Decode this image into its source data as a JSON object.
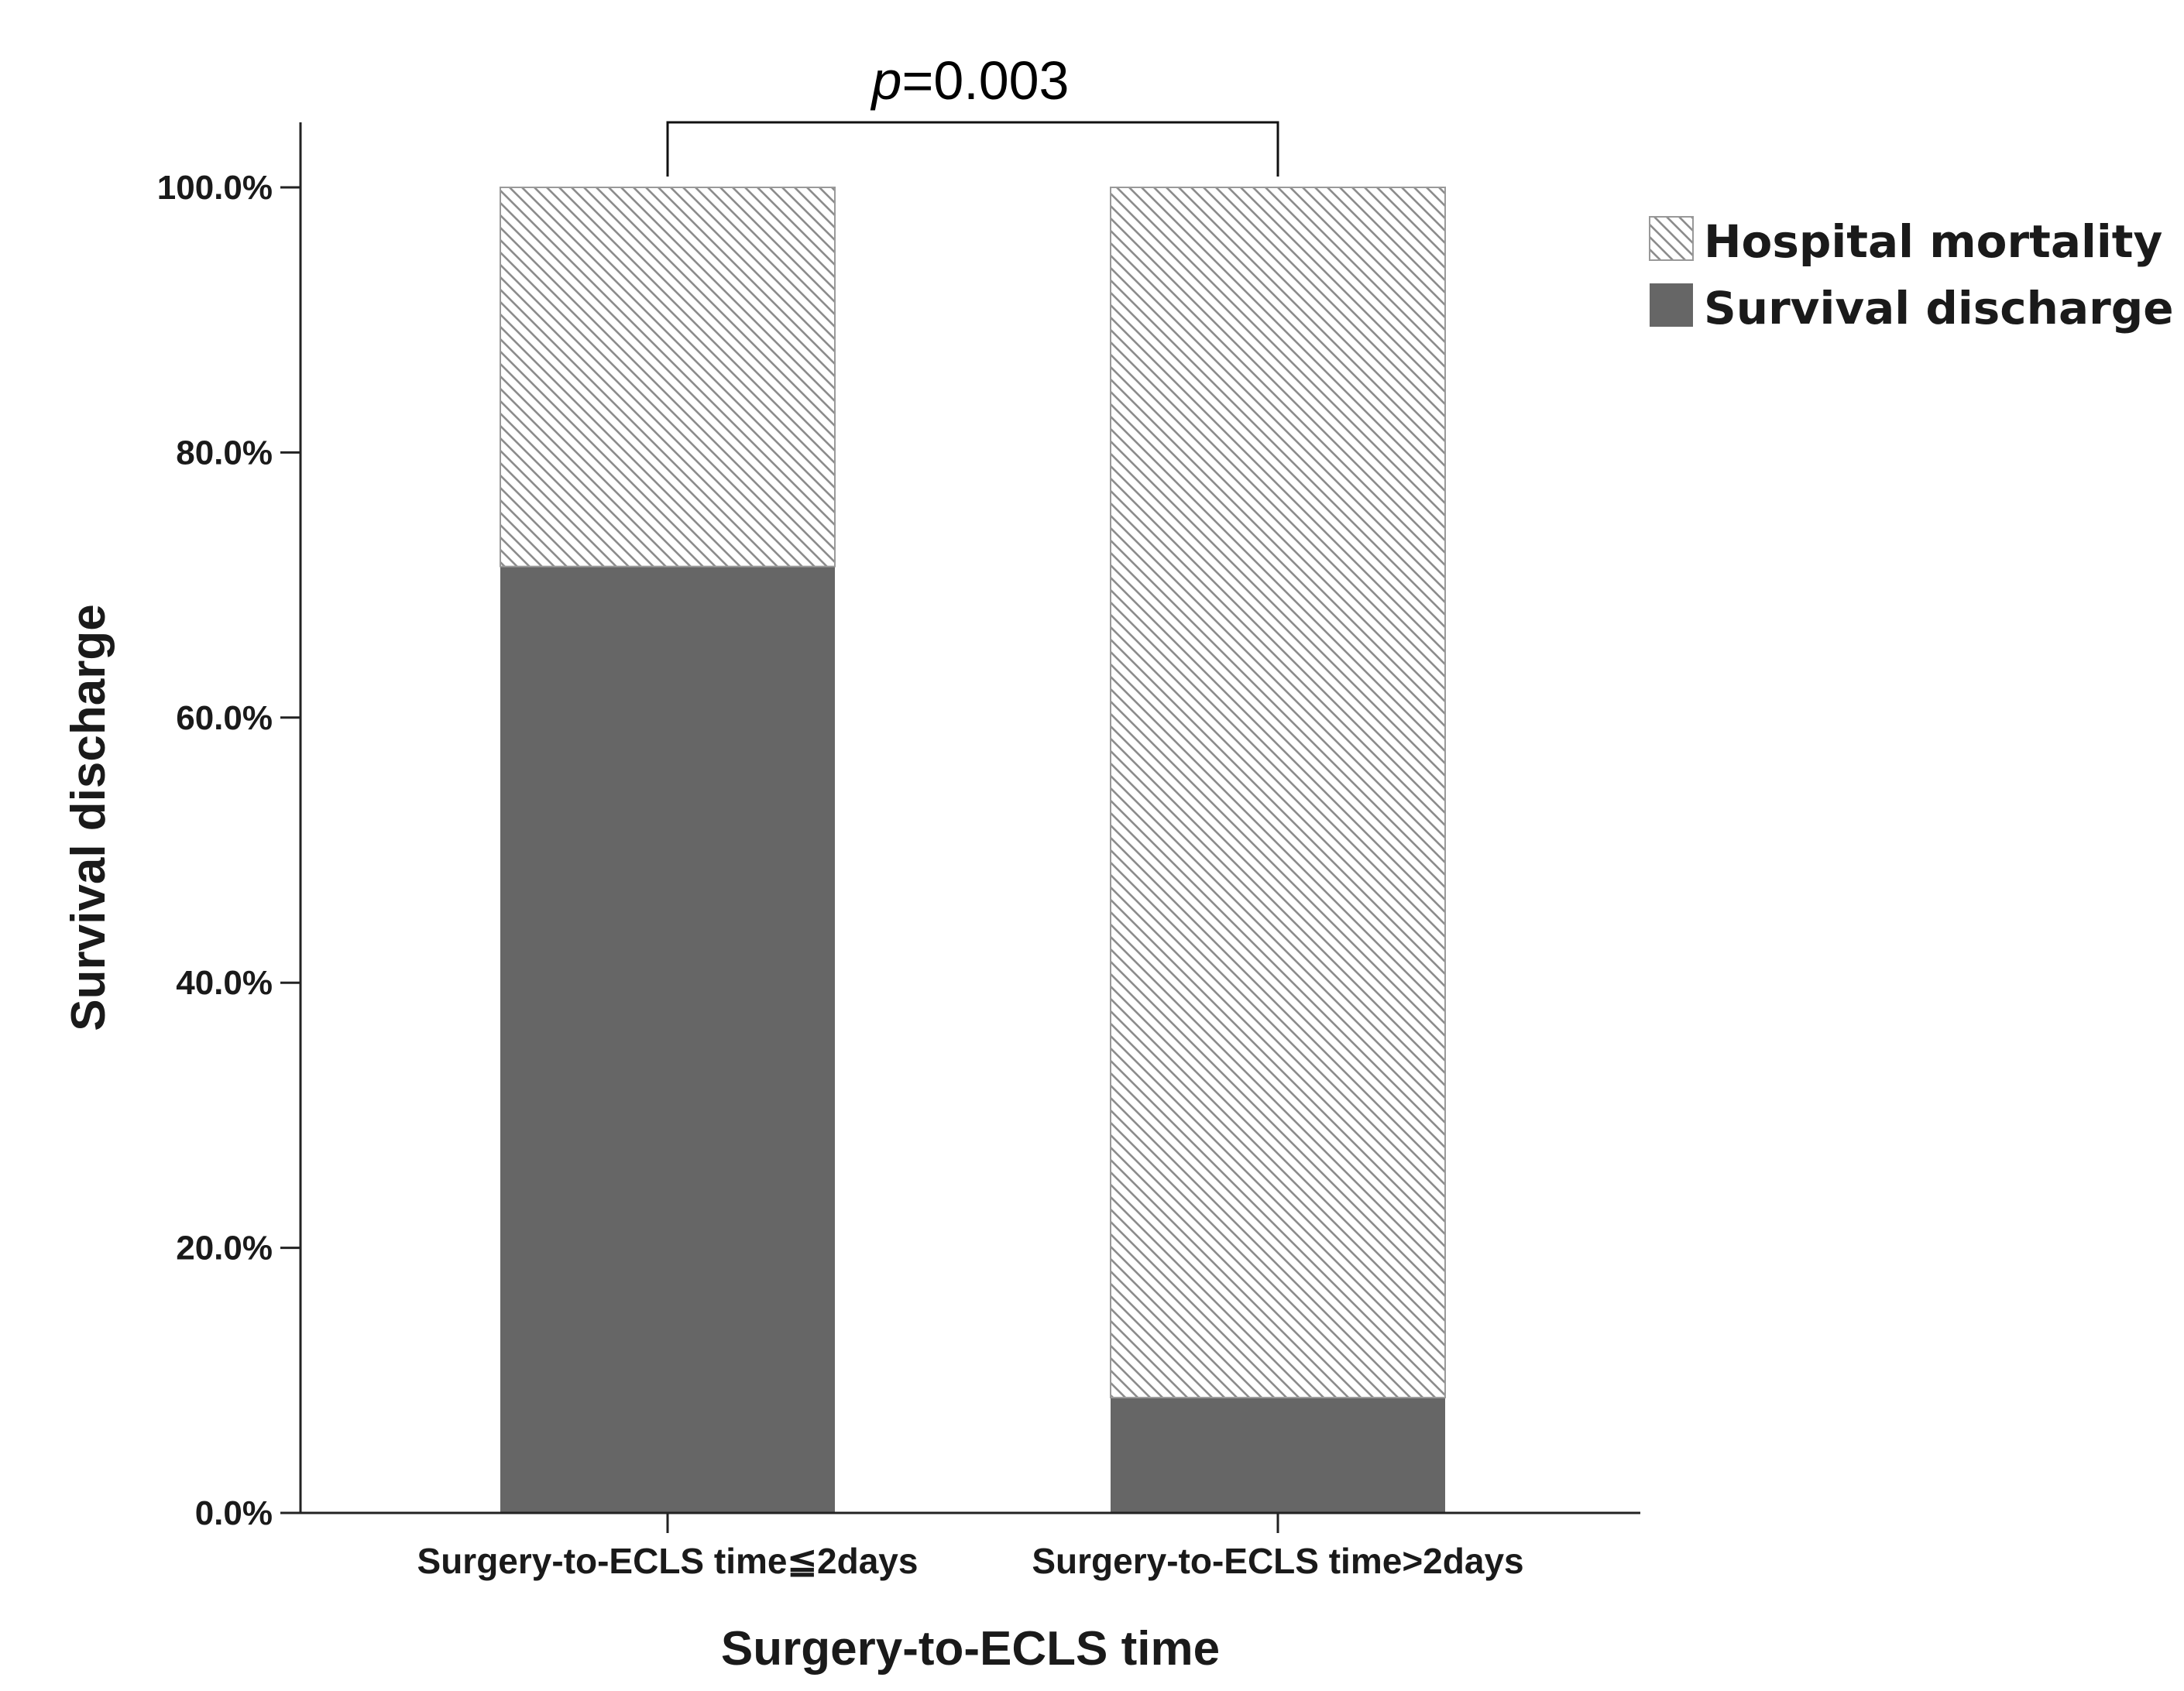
{
  "chart_data": {
    "type": "bar",
    "stacked": true,
    "xlabel": "Surgery-to-ECLS time",
    "ylabel": "Survival discharge",
    "categories": [
      "Surgery-to-ECLS time≦2days",
      "Surgery-to-ECLS time>2days"
    ],
    "ylim": [
      0,
      100
    ],
    "yticks": [
      "0.0%",
      "20.0%",
      "40.0%",
      "60.0%",
      "80.0%",
      "100.0%"
    ],
    "series": [
      {
        "name": "Survival discharge",
        "values": [
          71.4,
          8.7
        ],
        "color": "#666666",
        "pattern": "solid"
      },
      {
        "name": "Hospital mortality",
        "values": [
          28.6,
          91.3
        ],
        "color": "#a0a0a0",
        "pattern": "diagonal-hatch"
      }
    ],
    "legend_order": [
      "Hospital mortality",
      "Survival discharge"
    ],
    "legend_position": "top-right",
    "grid": false,
    "annotation": {
      "prefix": "p",
      "text": "=0.003"
    }
  }
}
